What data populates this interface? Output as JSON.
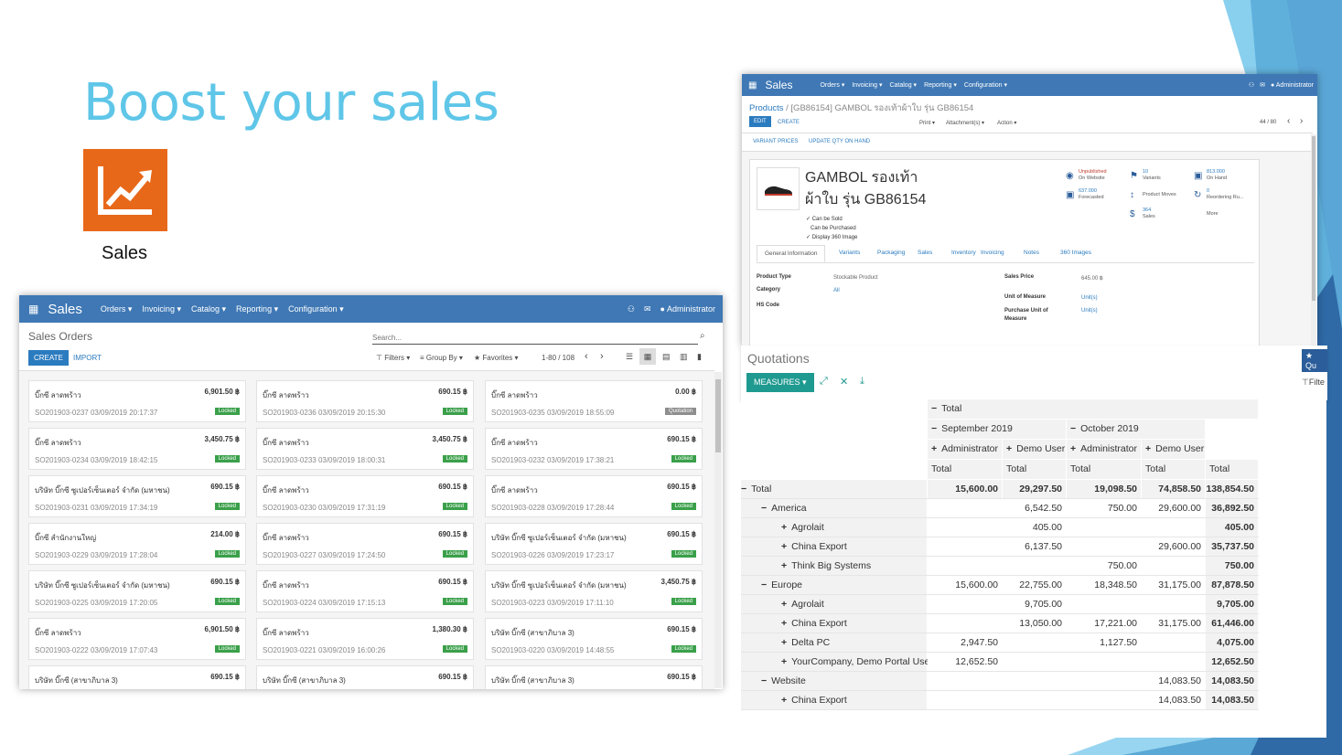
{
  "slide": {
    "title": "Boost your sales",
    "app_label": "Sales"
  },
  "colors": {
    "accent": "#5fc6e8",
    "nav": "#3f78b5",
    "locked": "#3aa04a",
    "orange": "#e8681a"
  },
  "left": {
    "app": "Sales",
    "menus": [
      "Orders",
      "Invoicing",
      "Catalog",
      "Reporting",
      "Configuration"
    ],
    "user": "Administrator",
    "page_title": "Sales Orders",
    "search_placeholder": "Search...",
    "create": "CREATE",
    "import": "IMPORT",
    "filters": "Filters",
    "group_by": "Group By",
    "favorites": "Favorites",
    "pager": "1-80 / 108",
    "cards": [
      {
        "c": "บิ๊กซี ลาดพร้าว",
        "a": "6,901.50 ฿",
        "r": "SO201903-0237 03/09/2019 20:17:37",
        "b": "Locked"
      },
      {
        "c": "บิ๊กซี ลาดพร้าว",
        "a": "690.15 ฿",
        "r": "SO201903-0236 03/09/2019 20:15:30",
        "b": "Locked"
      },
      {
        "c": "บิ๊กซี ลาดพร้าว",
        "a": "0.00 ฿",
        "r": "SO201903-0235 03/09/2019 18:55:09",
        "b": "Quotation"
      },
      {
        "c": "บิ๊กซี ลาดพร้าว",
        "a": "3,450.75 ฿",
        "r": "SO201903-0234 03/09/2019 18:42:15",
        "b": "Locked"
      },
      {
        "c": "บิ๊กซี ลาดพร้าว",
        "a": "3,450.75 ฿",
        "r": "SO201903-0233 03/09/2019 18:00:31",
        "b": "Locked"
      },
      {
        "c": "บิ๊กซี ลาดพร้าว",
        "a": "690.15 ฿",
        "r": "SO201903-0232 03/09/2019 17:38:21",
        "b": "Locked"
      },
      {
        "c": "บริษัท บิ๊กซี ซูเปอร์เซ็นเตอร์ จำกัด (มหาชน)",
        "a": "690.15 ฿",
        "r": "SO201903-0231 03/09/2019 17:34:19",
        "b": "Locked"
      },
      {
        "c": "บิ๊กซี ลาดพร้าว",
        "a": "690.15 ฿",
        "r": "SO201903-0230 03/09/2019 17:31:19",
        "b": "Locked"
      },
      {
        "c": "บิ๊กซี ลาดพร้าว",
        "a": "690.15 ฿",
        "r": "SO201903-0228 03/09/2019 17:28:44",
        "b": "Locked"
      },
      {
        "c": "บิ๊กซี สำนักงานใหญ่",
        "a": "214.00 ฿",
        "r": "SO201903-0229 03/09/2019 17:28:04",
        "b": "Locked"
      },
      {
        "c": "บิ๊กซี ลาดพร้าว",
        "a": "690.15 ฿",
        "r": "SO201903-0227 03/09/2019 17:24:50",
        "b": "Locked"
      },
      {
        "c": "บริษัท บิ๊กซี ซูเปอร์เซ็นเตอร์ จำกัด (มหาชน)",
        "a": "690.15 ฿",
        "r": "SO201903-0226 03/09/2019 17:23:17",
        "b": "Locked"
      },
      {
        "c": "บริษัท บิ๊กซี ซูเปอร์เซ็นเตอร์ จำกัด (มหาชน)",
        "a": "690.15 ฿",
        "r": "SO201903-0225 03/09/2019 17:20:05",
        "b": "Locked"
      },
      {
        "c": "บิ๊กซี ลาดพร้าว",
        "a": "690.15 ฿",
        "r": "SO201903-0224 03/09/2019 17:15:13",
        "b": "Locked"
      },
      {
        "c": "บริษัท บิ๊กซี ซูเปอร์เซ็นเตอร์ จำกัด (มหาชน)",
        "a": "3,450.75 ฿",
        "r": "SO201903-0223 03/09/2019 17:11:10",
        "b": "Locked"
      },
      {
        "c": "บิ๊กซี ลาดพร้าว",
        "a": "6,901.50 ฿",
        "r": "SO201903-0222 03/09/2019 17:07:43",
        "b": "Locked"
      },
      {
        "c": "บิ๊กซี ลาดพร้าว",
        "a": "1,380.30 ฿",
        "r": "SO201903-0221 03/09/2019 16:00:26",
        "b": "Locked"
      },
      {
        "c": "บริษัท บิ๊กซี (สาขาภิบาล 3)",
        "a": "690.15 ฿",
        "r": "SO201903-0220 03/09/2019 14:48:55",
        "b": "Locked"
      },
      {
        "c": "บริษัท บิ๊กซี (สาขาภิบาล 3)",
        "a": "690.15 ฿",
        "r": "",
        "b": ""
      },
      {
        "c": "บริษัท บิ๊กซี (สาขาภิบาล 3)",
        "a": "690.15 ฿",
        "r": "",
        "b": ""
      },
      {
        "c": "บริษัท บิ๊กซี (สาขาภิบาล 3)",
        "a": "690.15 ฿",
        "r": "",
        "b": ""
      }
    ]
  },
  "product": {
    "app": "Sales",
    "menus": [
      "Orders",
      "Invoicing",
      "Catalog",
      "Reporting",
      "Configuration"
    ],
    "user": "Administrator",
    "breadcrumb_root": "Products",
    "breadcrumb_current": "[GB86154] GAMBOL รองเท้าผ้าใบ รุ่น GB86154",
    "edit": "EDIT",
    "create": "CREATE",
    "print": "Print",
    "attachments": "Attachment(s)",
    "action": "Action",
    "pager": "44 / 80",
    "variant_prices": "VARIANT PRICES",
    "update_qty": "UPDATE QTY ON HAND",
    "name_line1": "GAMBOL รองเท้า",
    "name_line2": "ผ้าใบ รุ่น GB86154",
    "checks": [
      "Can be Sold",
      "Can be Purchased",
      "Display 360 Image"
    ],
    "stats": [
      {
        "v": "Unpublished",
        "l": "On Website"
      },
      {
        "v": "10",
        "l": "Variants"
      },
      {
        "v": "813.000",
        "l": "On Hand"
      },
      {
        "v": "637.000",
        "l": "Forecasted"
      },
      {
        "v": "",
        "l": "Product Moves"
      },
      {
        "v": "0",
        "l": "Reordering Ru..."
      },
      {
        "v": "",
        "l": ""
      },
      {
        "v": "364",
        "l": "Sales"
      },
      {
        "v": "",
        "l": "More"
      }
    ],
    "tabs": [
      "General Information",
      "Variants",
      "Packaging",
      "Sales",
      "Inventory",
      "Invoicing",
      "Notes",
      "360 Images"
    ],
    "fields": {
      "product_type_l": "Product Type",
      "product_type_v": "Stockable Product",
      "category_l": "Category",
      "category_v": "All",
      "hs_l": "HS Code",
      "sales_price_l": "Sales Price",
      "sales_price_v": "645.00 ฿",
      "uom_l": "Unit of Measure",
      "uom_v": "Unit(s)",
      "puom_l": "Purchase Unit of Measure",
      "puom_v": "Unit(s)"
    }
  },
  "pivot": {
    "title": "Quotations",
    "measures": "MEASURES",
    "filter": "Filte",
    "qu": "Qu",
    "h_total": "Total",
    "h_months": [
      "September 2019",
      "October 2019"
    ],
    "h_users": [
      "Administrator",
      "Demo User",
      "Administrator",
      "Demo User"
    ],
    "col_total": "Total",
    "rows": [
      {
        "label": "Total",
        "lvl": 0,
        "sign": "−",
        "bold": true,
        "vals": [
          "15,600.00",
          "29,297.50",
          "19,098.50",
          "74,858.50",
          "138,854.50"
        ]
      },
      {
        "label": "America",
        "lvl": 1,
        "sign": "−",
        "vals": [
          "",
          "6,542.50",
          "750.00",
          "29,600.00",
          "36,892.50"
        ]
      },
      {
        "label": "Agrolait",
        "lvl": 2,
        "sign": "+",
        "vals": [
          "",
          "405.00",
          "",
          "",
          "405.00"
        ]
      },
      {
        "label": "China Export",
        "lvl": 2,
        "sign": "+",
        "vals": [
          "",
          "6,137.50",
          "",
          "29,600.00",
          "35,737.50"
        ]
      },
      {
        "label": "Think Big Systems",
        "lvl": 2,
        "sign": "+",
        "vals": [
          "",
          "",
          "750.00",
          "",
          "750.00"
        ]
      },
      {
        "label": "Europe",
        "lvl": 1,
        "sign": "−",
        "vals": [
          "15,600.00",
          "22,755.00",
          "18,348.50",
          "31,175.00",
          "87,878.50"
        ]
      },
      {
        "label": "Agrolait",
        "lvl": 2,
        "sign": "+",
        "vals": [
          "",
          "9,705.00",
          "",
          "",
          "9,705.00"
        ]
      },
      {
        "label": "China Export",
        "lvl": 2,
        "sign": "+",
        "vals": [
          "",
          "13,050.00",
          "17,221.00",
          "31,175.00",
          "61,446.00"
        ]
      },
      {
        "label": "Delta PC",
        "lvl": 2,
        "sign": "+",
        "vals": [
          "2,947.50",
          "",
          "1,127.50",
          "",
          "4,075.00"
        ]
      },
      {
        "label": "YourCompany, Demo Portal User",
        "lvl": 2,
        "sign": "+",
        "vals": [
          "12,652.50",
          "",
          "",
          "",
          "12,652.50"
        ]
      },
      {
        "label": "Website",
        "lvl": 1,
        "sign": "−",
        "vals": [
          "",
          "",
          "",
          "14,083.50",
          "14,083.50"
        ]
      },
      {
        "label": "China Export",
        "lvl": 2,
        "sign": "+",
        "vals": [
          "",
          "",
          "",
          "14,083.50",
          "14,083.50"
        ]
      }
    ]
  }
}
